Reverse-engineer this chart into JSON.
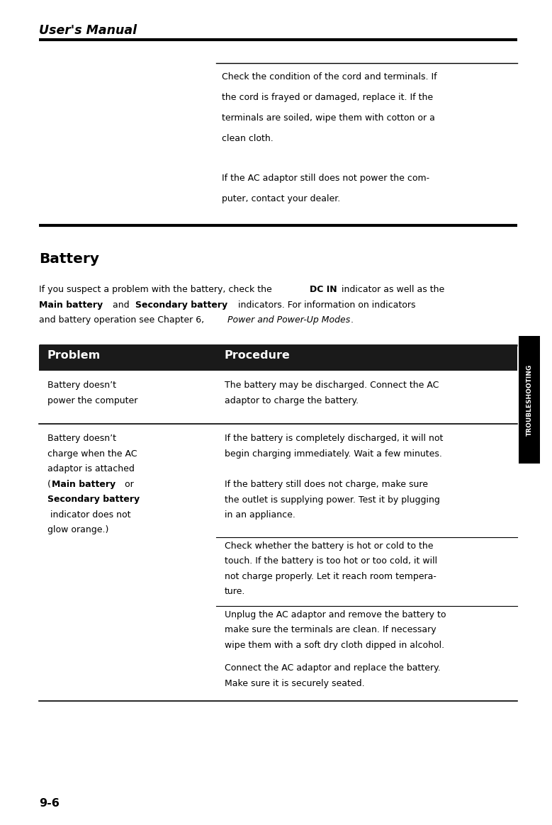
{
  "bg_color": "#ffffff",
  "header_title": "User's Manual",
  "section_label": "TROUBLESHOOTING",
  "page_num": "9-6",
  "top_para1": [
    "Check the condition of the cord and terminals. If",
    "the cord is frayed or damaged, replace it. If the",
    "terminals are soiled, wipe them with cotton or a",
    "clean cloth."
  ],
  "top_para2": [
    "If the AC adaptor still does not power the com-",
    "puter, contact your dealer."
  ],
  "battery_heading": "Battery",
  "intro_line1_pre": "If you suspect a problem with the battery, check the ",
  "intro_line1_bold": "DC IN",
  "intro_line1_post": " indicator as well as the",
  "intro_line2_bold1": "Main battery",
  "intro_line2_mid": " and ",
  "intro_line2_bold2": "Secondary battery",
  "intro_line2_post": " indicators. For information on indicators",
  "intro_line3_pre": "and battery operation see Chapter 6, ",
  "intro_line3_italic": "Power and Power-Up Modes",
  "intro_line3_post": ".",
  "tbl_hdr_problem": "Problem",
  "tbl_hdr_procedure": "Procedure",
  "row1_prob": [
    "Battery doesn’t",
    "power the computer"
  ],
  "row1_proc": [
    [
      "The battery may be discharged. Connect the AC",
      "adaptor to charge the battery."
    ]
  ],
  "row2_prob_plain": [
    "Battery doesn’t",
    "charge when the AC",
    "adaptor is attached"
  ],
  "row2_prob_line4_pre": "(",
  "row2_prob_line4_bold": "Main battery",
  "row2_prob_line4_post": " or",
  "row2_prob_line5_bold": "Secondary battery",
  "row2_prob_line5_post": "",
  "row2_prob_line6": " indicator does not",
  "row2_prob_line7": "glow orange.)",
  "row2_proc_block1": [
    "If the battery is completely discharged, it will not",
    "begin charging immediately. Wait a few minutes."
  ],
  "row2_proc_block2": [
    "If the battery still does not charge, make sure",
    "the outlet is supplying power. Test it by plugging",
    "in an appliance."
  ],
  "row2_proc_block3": [
    "Check whether the battery is hot or cold to the",
    "touch. If the battery is too hot or too cold, it will",
    "not charge properly. Let it reach room tempera-",
    "ture."
  ],
  "row2_proc_block4": [
    "Unplug the AC adaptor and remove the battery to",
    "make sure the terminals are clean. If necessary",
    "wipe them with a soft dry cloth dipped in alcohol."
  ],
  "row2_proc_block5": [
    "Connect the AC adaptor and replace the battery.",
    "Make sure it is securely seated."
  ]
}
